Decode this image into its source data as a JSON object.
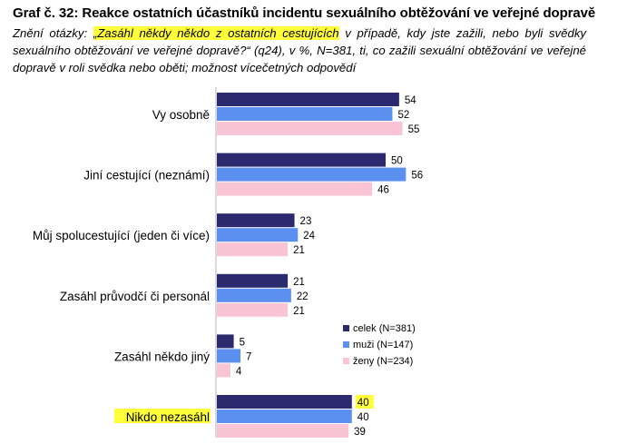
{
  "header": {
    "title": "Graf č. 32: Reakce ostatních účastníků incidentu sexuálního obtěžování ve veřejné dopravě",
    "subtitle_prefix": "Znění otázky: ",
    "subtitle_highlight": "„Zasáhl někdy někdo z ostatních cestujících",
    "subtitle_rest": " v případě, kdy jste zažili, nebo byli svědky sexuálního obtěžování ve veřejné dopravě?“ (q24), v %, N=381, ti, co zažili sexuální obtěžování ve veřejné dopravě v roli svědka nebo oběti; možnost vícečetných odpovědí"
  },
  "colors": {
    "celek": "#2b2a6e",
    "muzi": "#5b8ff0",
    "zeny": "#f9c4d4",
    "highlight": "#ffff3a"
  },
  "chart_data": {
    "type": "bar",
    "orientation": "horizontal",
    "categories": [
      "Vy osobně",
      "Jiní cestující (neznámí)",
      "Můj spolucestující (jeden či více)",
      "Zasáhl průvodčí či personál",
      "Zasáhl někdo jiný",
      "Nikdo nezasáhl"
    ],
    "series": [
      {
        "name": "celek (N=381)",
        "values": [
          54,
          50,
          23,
          21,
          5,
          40
        ]
      },
      {
        "name": "muži (N=147)",
        "values": [
          52,
          56,
          24,
          22,
          7,
          40
        ]
      },
      {
        "name": "ženy (N=234)",
        "values": [
          55,
          46,
          21,
          21,
          4,
          39
        ]
      }
    ],
    "highlighted_category": "Nikdo nezasáhl",
    "highlighted_value": "celek:40",
    "legend_position": "right",
    "grid": false
  }
}
